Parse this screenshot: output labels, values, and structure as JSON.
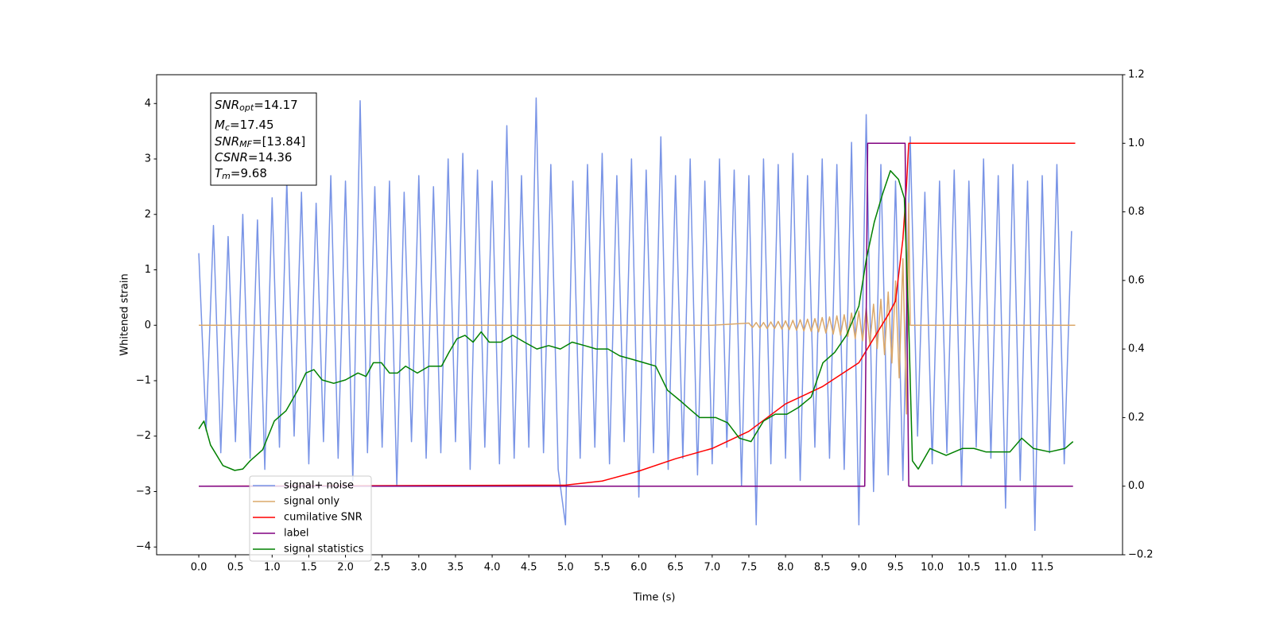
{
  "chart_data": {
    "type": "line",
    "x_label": "Time (s)",
    "y_label": "Whitened strain",
    "xlim": [
      -0.575,
      12.595
    ],
    "ylim": [
      -4.14,
      4.52
    ],
    "y2lim": [
      -0.2,
      1.2
    ],
    "xticks": [
      {
        "value": 0,
        "label": "0.0"
      },
      0.5,
      {
        "value": 1,
        "label": "1.0"
      },
      1.5,
      {
        "value": 2,
        "label": "2.0"
      },
      2.5,
      {
        "value": 3,
        "label": "3.0"
      },
      3.5,
      {
        "value": 4,
        "label": "4.0"
      },
      4.5,
      {
        "value": 5,
        "label": "5.0"
      },
      5.5,
      {
        "value": 6,
        "label": "6.0"
      },
      6.5,
      {
        "value": 7,
        "label": "7.0"
      },
      7.5,
      {
        "value": 8,
        "label": "8.0"
      },
      8.5,
      {
        "value": 9,
        "label": "9.0"
      },
      9.5,
      {
        "value": 10,
        "label": "10.0"
      },
      10.5,
      {
        "value": 11,
        "label": "11.0"
      },
      11.5
    ],
    "yticks": [
      {
        "value": -4,
        "label": "−4"
      },
      {
        "value": -3,
        "label": "−3"
      },
      {
        "value": -2,
        "label": "−2"
      },
      {
        "value": -1,
        "label": "−1"
      },
      0,
      1,
      2,
      3,
      4
    ],
    "y2ticks": [
      {
        "value": -0.2,
        "label": "−0.2"
      },
      {
        "value": 0,
        "label": "0.0"
      },
      0.2,
      0.4,
      0.6,
      0.8,
      {
        "value": 1,
        "label": "1.0"
      },
      1.2
    ],
    "legend": "lower left",
    "annotations": [
      {
        "symbol": "SNR",
        "sub": "opt",
        "text": "=14.17"
      },
      {
        "symbol": "M",
        "sub": "c",
        "text": "=17.45"
      },
      {
        "symbol": "SNR",
        "sub": "MF",
        "text": "=[13.84]"
      },
      {
        "symbol": "CSNR",
        "sub": null,
        "text": "=14.36"
      },
      {
        "symbol": "T",
        "sub": "m",
        "text": "=9.68"
      }
    ],
    "series": [
      {
        "name": "signal+ noise",
        "color": "#7994e6",
        "x": [
          0.0,
          0.1,
          0.2,
          0.3,
          0.4,
          0.5,
          0.6,
          0.7,
          0.8,
          0.9,
          1.0,
          1.1,
          1.2,
          1.3,
          1.4,
          1.5,
          1.6,
          1.7,
          1.8,
          1.9,
          2.0,
          2.1,
          2.2,
          2.3,
          2.4,
          2.5,
          2.6,
          2.7,
          2.8,
          2.9,
          3.0,
          3.1,
          3.2,
          3.3,
          3.4,
          3.5,
          3.6,
          3.7,
          3.8,
          3.9,
          4.0,
          4.1,
          4.2,
          4.3,
          4.4,
          4.5,
          4.6,
          4.7,
          4.8,
          4.9,
          5.0,
          5.1,
          5.2,
          5.3,
          5.4,
          5.5,
          5.6,
          5.7,
          5.8,
          5.9,
          6.0,
          6.1,
          6.2,
          6.3,
          6.4,
          6.5,
          6.6,
          6.7,
          6.8,
          6.9,
          7.0,
          7.1,
          7.2,
          7.3,
          7.4,
          7.5,
          7.6,
          7.7,
          7.8,
          7.9,
          8.0,
          8.1,
          8.2,
          8.3,
          8.4,
          8.5,
          8.6,
          8.7,
          8.8,
          8.9,
          9.0,
          9.1,
          9.2,
          9.3,
          9.4,
          9.5,
          9.6,
          9.7,
          9.8,
          9.9,
          10.0,
          10.1,
          10.2,
          10.3,
          10.4,
          10.5,
          10.6,
          10.7,
          10.8,
          10.9,
          11.0,
          11.1,
          11.2,
          11.3,
          11.4,
          11.5,
          11.6,
          11.7,
          11.8,
          11.9
        ],
        "values": [
          1.3,
          -1.9,
          1.8,
          -2.3,
          1.6,
          -2.1,
          2.0,
          -2.4,
          1.9,
          -2.6,
          2.3,
          -2.2,
          2.6,
          -2.0,
          2.4,
          -2.5,
          2.2,
          -2.1,
          2.7,
          -2.4,
          2.6,
          -2.8,
          4.05,
          -2.3,
          2.5,
          -2.2,
          2.6,
          -2.9,
          2.4,
          -2.1,
          2.7,
          -2.4,
          2.5,
          -2.3,
          3.0,
          -2.1,
          3.1,
          -2.6,
          2.8,
          -2.2,
          2.6,
          -2.5,
          3.6,
          -2.4,
          2.7,
          -2.2,
          4.1,
          -2.3,
          2.9,
          -2.6,
          -3.6,
          2.6,
          -2.4,
          2.9,
          -2.2,
          3.1,
          -2.5,
          2.7,
          -2.1,
          3.0,
          -3.1,
          2.8,
          -2.3,
          3.4,
          -2.6,
          2.7,
          -2.4,
          3.0,
          -2.7,
          2.6,
          -2.5,
          3.0,
          -2.2,
          2.8,
          -2.9,
          2.7,
          -3.6,
          3.0,
          -2.5,
          2.9,
          -2.4,
          3.1,
          -2.8,
          2.7,
          -2.2,
          3.0,
          -2.4,
          2.9,
          -2.6,
          3.3,
          -3.6,
          3.8,
          -3.0,
          2.9,
          -2.7,
          2.6,
          -2.8,
          3.4,
          -2.0,
          2.4,
          -2.5,
          2.6,
          -2.3,
          2.8,
          -2.9,
          2.6,
          -2.2,
          3.0,
          -2.4,
          2.7,
          -3.3,
          2.9,
          -2.8,
          2.6,
          -3.7,
          2.7,
          -2.3,
          2.9,
          -2.5,
          1.7
        ]
      },
      {
        "name": "signal only",
        "color": "#dba86a",
        "x": [
          0.0,
          7.0,
          7.5,
          7.55,
          7.6,
          7.65,
          7.7,
          7.75,
          7.8,
          7.85,
          7.9,
          7.95,
          8.0,
          8.05,
          8.1,
          8.15,
          8.2,
          8.25,
          8.3,
          8.35,
          8.4,
          8.45,
          8.5,
          8.55,
          8.6,
          8.65,
          8.7,
          8.75,
          8.8,
          8.85,
          8.9,
          8.95,
          9.0,
          9.05,
          9.1,
          9.15,
          9.2,
          9.25,
          9.3,
          9.35,
          9.4,
          9.45,
          9.5,
          9.55,
          9.6,
          9.65,
          9.68,
          9.7,
          11.95
        ],
        "values": [
          0,
          0,
          0.04,
          -0.04,
          0.05,
          -0.05,
          0.05,
          -0.06,
          0.06,
          -0.06,
          0.07,
          -0.07,
          0.08,
          -0.08,
          0.09,
          -0.09,
          0.1,
          -0.1,
          0.11,
          -0.11,
          0.12,
          -0.12,
          0.14,
          -0.14,
          0.15,
          -0.16,
          0.17,
          -0.18,
          0.19,
          -0.2,
          0.22,
          -0.24,
          0.26,
          -0.28,
          0.31,
          -0.34,
          0.38,
          -0.42,
          0.47,
          -0.53,
          0.6,
          -0.68,
          0.8,
          -0.95,
          1.2,
          -1.6,
          2.2,
          0,
          0
        ]
      },
      {
        "name": "cumilative SNR",
        "color": "#ff0000",
        "axis": "y2",
        "x": [
          0,
          5.0,
          5.5,
          6.0,
          6.5,
          7.0,
          7.5,
          8.0,
          8.5,
          9.0,
          9.2,
          9.4,
          9.5,
          9.6,
          9.65,
          9.68,
          11.95
        ],
        "values": [
          0,
          0.003,
          0.015,
          0.044,
          0.08,
          0.11,
          0.16,
          0.24,
          0.29,
          0.36,
          0.43,
          0.5,
          0.54,
          0.72,
          0.88,
          1.0,
          1.0
        ]
      },
      {
        "name": "label",
        "color": "#800080",
        "axis": "y2",
        "x": [
          0,
          9.08,
          9.12,
          9.63,
          9.68,
          11.92
        ],
        "values": [
          0,
          0,
          1,
          1,
          0,
          0
        ]
      },
      {
        "name": "signal statistics",
        "color": "#008000",
        "axis": "y2",
        "x": [
          0.0,
          0.07,
          0.16,
          0.33,
          0.49,
          0.6,
          0.7,
          0.87,
          1.03,
          1.19,
          1.35,
          1.46,
          1.57,
          1.68,
          1.84,
          2.0,
          2.17,
          2.28,
          2.38,
          2.49,
          2.6,
          2.71,
          2.82,
          2.98,
          3.14,
          3.31,
          3.41,
          3.52,
          3.63,
          3.74,
          3.85,
          3.96,
          4.12,
          4.28,
          4.44,
          4.61,
          4.77,
          4.93,
          5.09,
          5.26,
          5.42,
          5.58,
          5.74,
          5.91,
          6.07,
          6.23,
          6.39,
          6.56,
          6.72,
          6.83,
          7.05,
          7.21,
          7.37,
          7.53,
          7.7,
          7.86,
          8.02,
          8.18,
          8.35,
          8.51,
          8.67,
          8.83,
          9.0,
          9.1,
          9.21,
          9.32,
          9.43,
          9.54,
          9.62,
          9.68,
          9.73,
          9.81,
          9.97,
          10.19,
          10.41,
          10.57,
          10.73,
          11.06,
          11.22,
          11.38,
          11.6,
          11.81,
          11.92
        ],
        "values": [
          0.167,
          0.19,
          0.12,
          0.06,
          0.046,
          0.05,
          0.074,
          0.106,
          0.19,
          0.22,
          0.28,
          0.33,
          0.34,
          0.31,
          0.3,
          0.31,
          0.33,
          0.32,
          0.36,
          0.36,
          0.33,
          0.33,
          0.35,
          0.33,
          0.35,
          0.35,
          0.39,
          0.43,
          0.44,
          0.42,
          0.45,
          0.42,
          0.42,
          0.44,
          0.42,
          0.4,
          0.41,
          0.4,
          0.42,
          0.41,
          0.4,
          0.4,
          0.38,
          0.37,
          0.36,
          0.35,
          0.28,
          0.25,
          0.22,
          0.2,
          0.2,
          0.185,
          0.14,
          0.13,
          0.19,
          0.21,
          0.21,
          0.23,
          0.26,
          0.36,
          0.39,
          0.44,
          0.525,
          0.66,
          0.77,
          0.85,
          0.92,
          0.895,
          0.84,
          0.47,
          0.074,
          0.05,
          0.11,
          0.09,
          0.11,
          0.11,
          0.1,
          0.1,
          0.14,
          0.11,
          0.1,
          0.11,
          0.13
        ]
      }
    ]
  }
}
